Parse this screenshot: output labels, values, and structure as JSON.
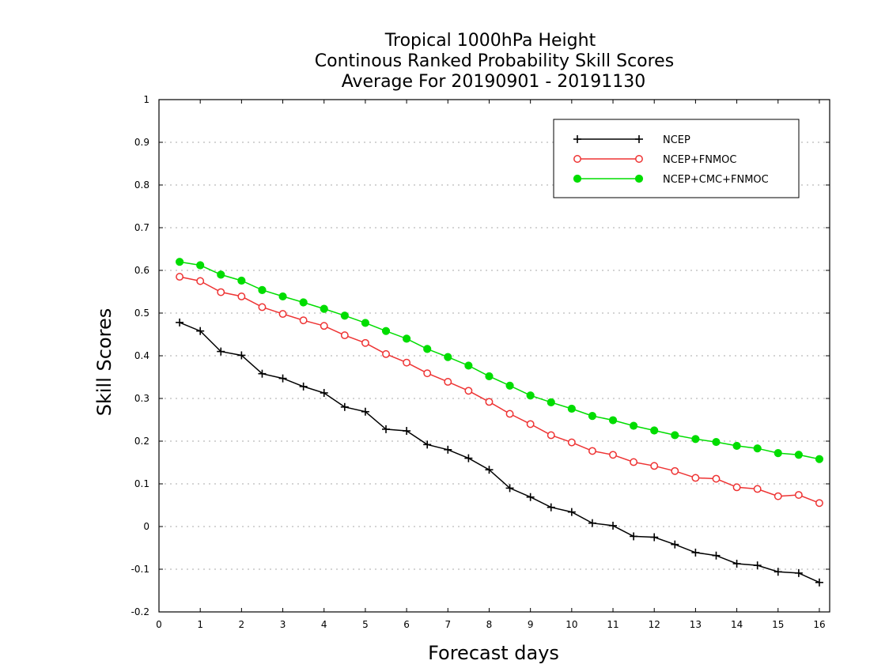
{
  "chart_data": {
    "type": "line",
    "title_lines": [
      "Tropical 1000hPa Height",
      "Continous Ranked Probability Skill Scores",
      "Average For 20190901 - 20191130"
    ],
    "xlabel": "Forecast days",
    "ylabel": "Skill Scores",
    "xlim": [
      0,
      16.25
    ],
    "ylim": [
      -0.2,
      1
    ],
    "x_ticks": [
      0,
      1,
      2,
      3,
      4,
      5,
      6,
      7,
      8,
      9,
      10,
      11,
      12,
      13,
      14,
      15,
      16
    ],
    "y_ticks": [
      -0.2,
      -0.1,
      0,
      0.1,
      0.2,
      0.3,
      0.4,
      0.5,
      0.6,
      0.7,
      0.8,
      0.9,
      1
    ],
    "y_tick_labels": [
      "-0.2",
      "-0.1",
      "0",
      "0.1",
      "0.2",
      "0.3",
      "0.4",
      "0.5",
      "0.6",
      "0.7",
      "0.8",
      "0.9",
      "1"
    ],
    "grid": "horizontal dotted",
    "legend_position": "top-right",
    "x": [
      0.5,
      1,
      1.5,
      2,
      2.5,
      3,
      3.5,
      4,
      4.5,
      5,
      5.5,
      6,
      6.5,
      7,
      7.5,
      8,
      8.5,
      9,
      9.5,
      10,
      10.5,
      11,
      11.5,
      12,
      12.5,
      13,
      13.5,
      14,
      14.5,
      15,
      15.5,
      16
    ],
    "series": [
      {
        "name": "NCEP",
        "color": "#000000",
        "marker": "plus",
        "values": [
          0.478,
          0.458,
          0.41,
          0.401,
          0.358,
          0.347,
          0.328,
          0.313,
          0.28,
          0.269,
          0.228,
          0.224,
          0.192,
          0.18,
          0.16,
          0.133,
          0.09,
          0.069,
          0.045,
          0.034,
          0.008,
          0.002,
          -0.023,
          -0.025,
          -0.042,
          -0.061,
          -0.068,
          -0.087,
          -0.091,
          -0.106,
          -0.109,
          -0.131
        ]
      },
      {
        "name": "NCEP+FNMOC",
        "color": "#ee3333",
        "marker": "open-circle",
        "values": [
          0.585,
          0.575,
          0.549,
          0.539,
          0.514,
          0.498,
          0.483,
          0.47,
          0.448,
          0.43,
          0.404,
          0.384,
          0.359,
          0.339,
          0.318,
          0.292,
          0.264,
          0.24,
          0.214,
          0.197,
          0.177,
          0.168,
          0.151,
          0.142,
          0.13,
          0.114,
          0.112,
          0.092,
          0.088,
          0.071,
          0.074,
          0.055
        ]
      },
      {
        "name": "NCEP+CMC+FNMOC",
        "color": "#00dd00",
        "marker": "filled-circle",
        "values": [
          0.62,
          0.612,
          0.59,
          0.576,
          0.554,
          0.539,
          0.525,
          0.51,
          0.494,
          0.477,
          0.458,
          0.44,
          0.416,
          0.397,
          0.377,
          0.352,
          0.33,
          0.307,
          0.291,
          0.276,
          0.259,
          0.249,
          0.236,
          0.225,
          0.214,
          0.205,
          0.198,
          0.189,
          0.183,
          0.172,
          0.168,
          0.158
        ]
      }
    ]
  }
}
